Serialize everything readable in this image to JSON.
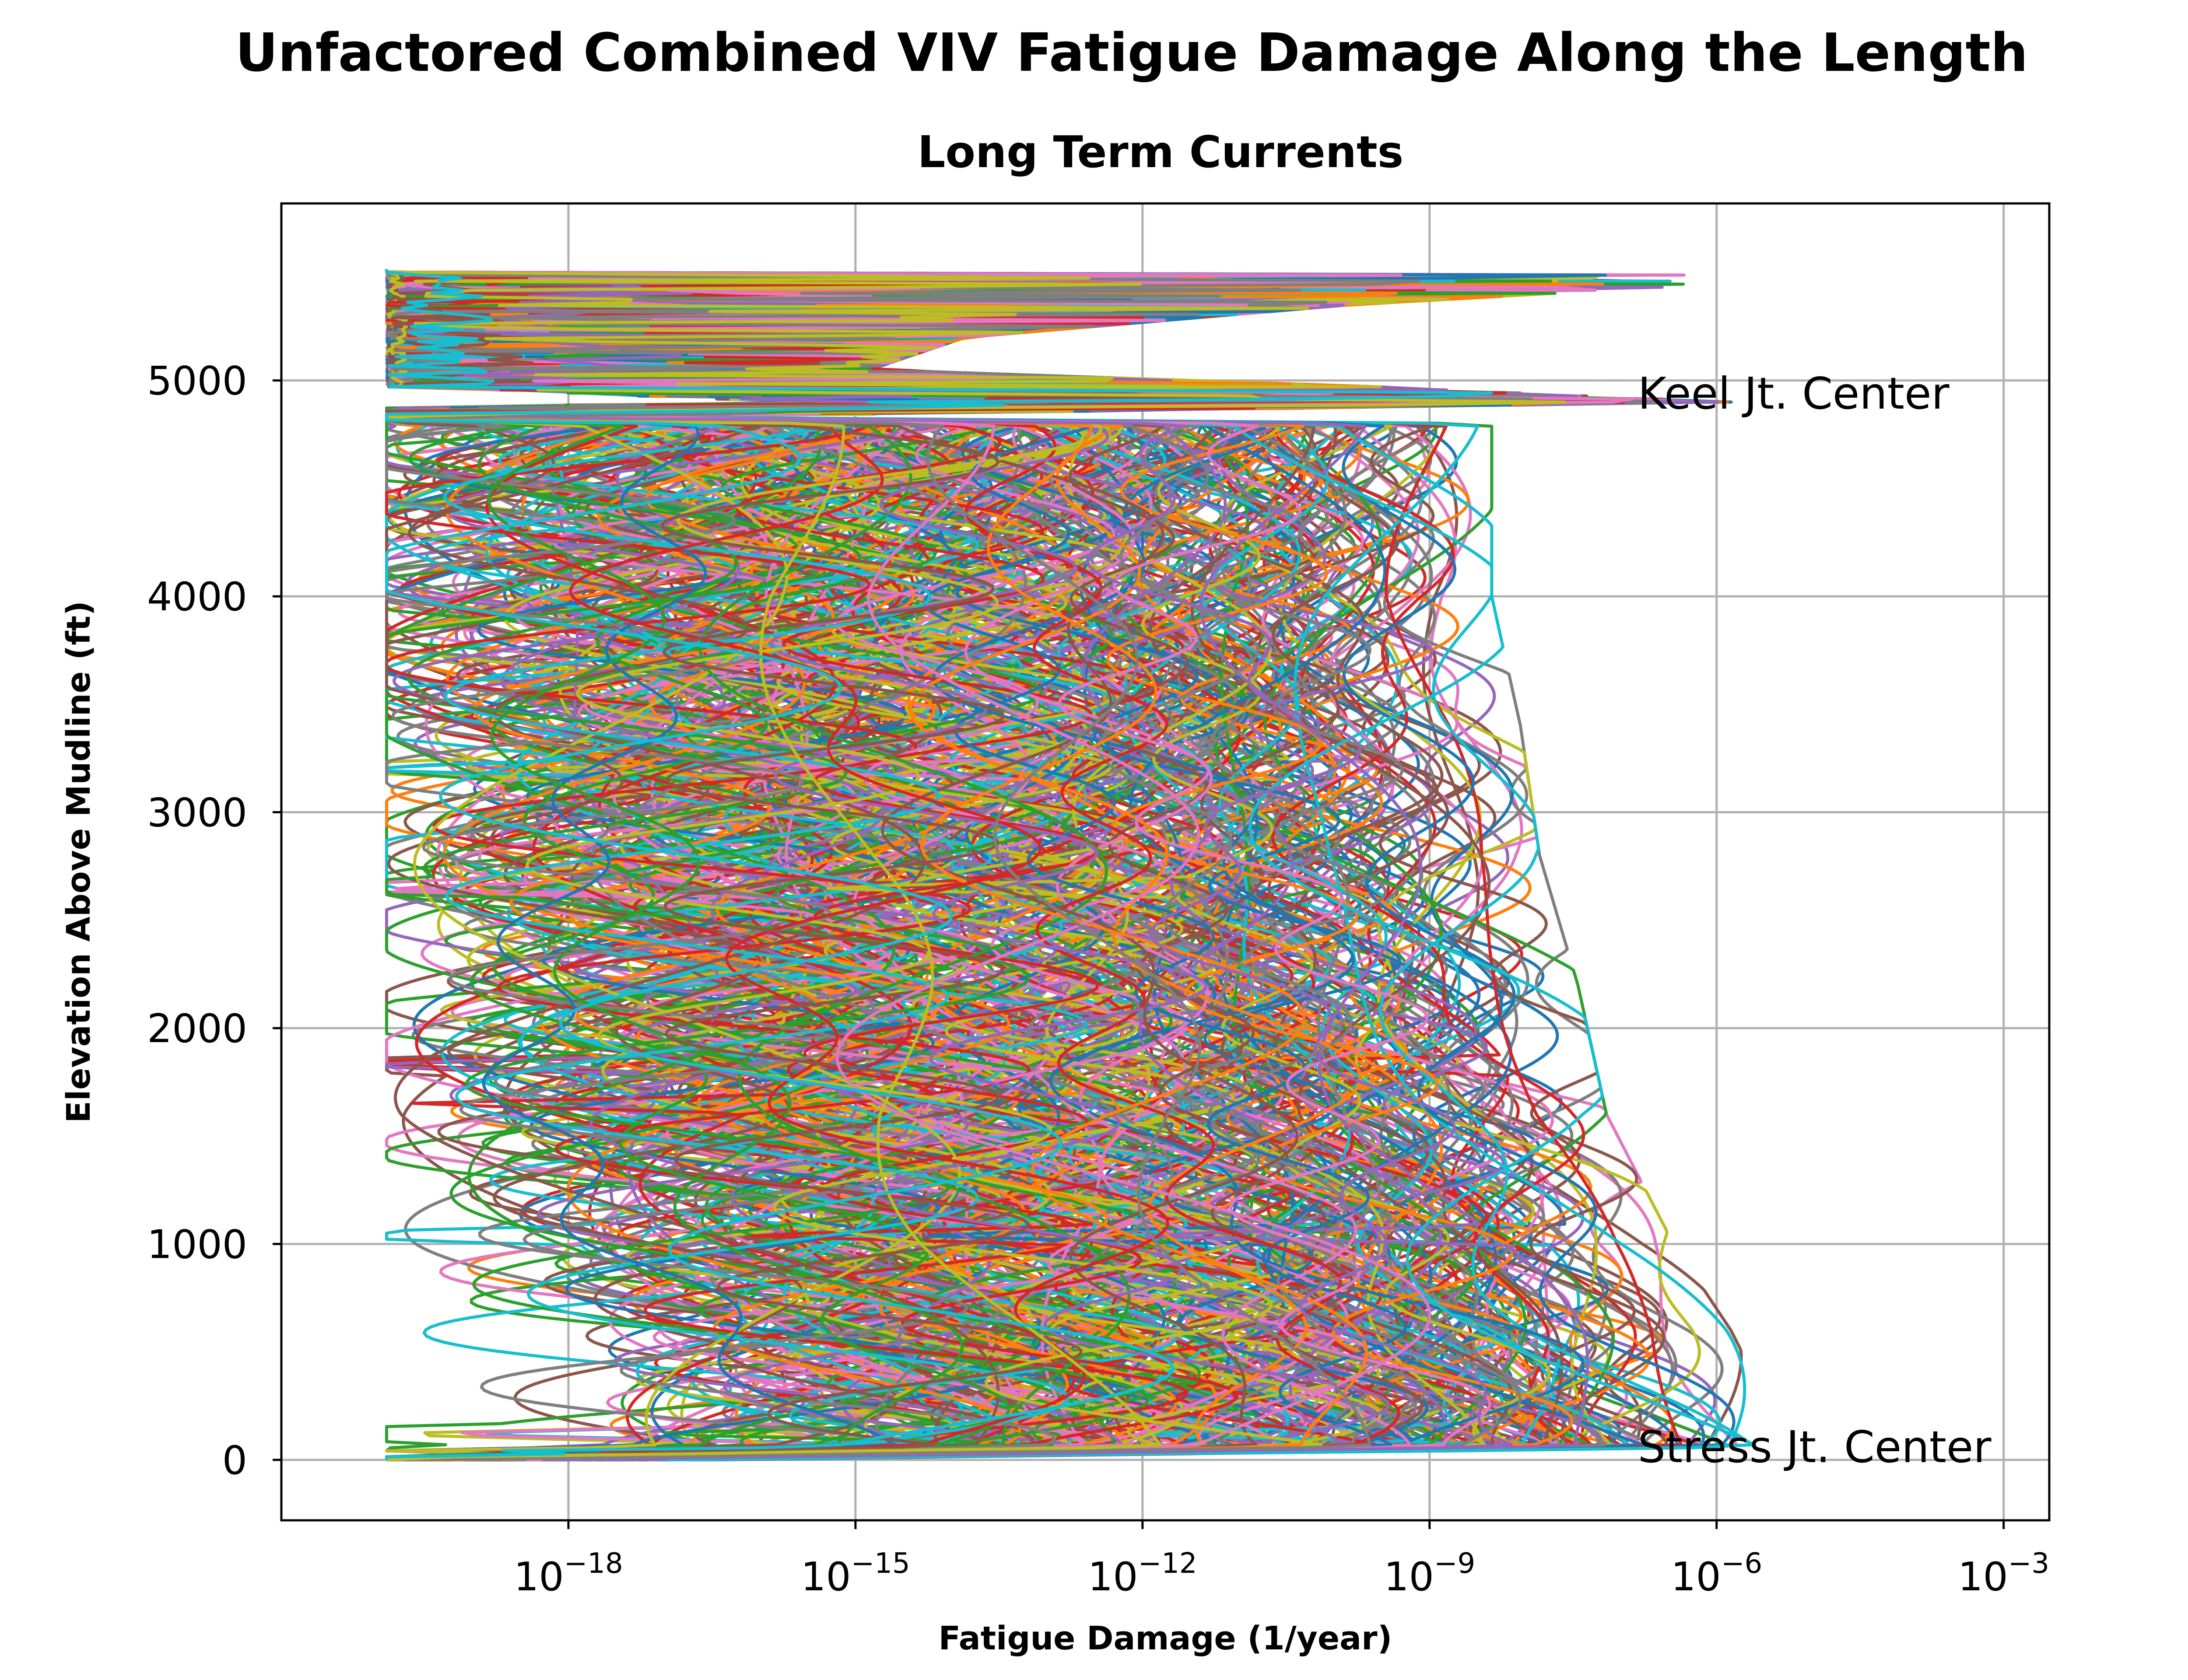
{
  "chart_data": {
    "type": "line",
    "title": "Unfactored Combined VIV Fatigue Damage Along the Length",
    "subtitle": "Long Term Currents",
    "xlabel": "Fatigue Damage (1/year)",
    "ylabel": "Elevation Above Mudline (ft)",
    "x_scale": "log",
    "xlim": [
      1e-21,
      0.003
    ],
    "ylim": [
      -280,
      5820
    ],
    "x_ticks": [
      {
        "value": 1e-18,
        "base": "10",
        "exp": "−18"
      },
      {
        "value": 1e-15,
        "base": "10",
        "exp": "−15"
      },
      {
        "value": 1e-12,
        "base": "10",
        "exp": "−12"
      },
      {
        "value": 1e-09,
        "base": "10",
        "exp": "−9"
      },
      {
        "value": 1e-06,
        "base": "10",
        "exp": "−6"
      },
      {
        "value": 0.001,
        "base": "10",
        "exp": "−3"
      }
    ],
    "y_ticks": [
      {
        "value": 0,
        "label": "0"
      },
      {
        "value": 1000,
        "label": "1000"
      },
      {
        "value": 2000,
        "label": "2000"
      },
      {
        "value": 3000,
        "label": "3000"
      },
      {
        "value": 4000,
        "label": "4000"
      },
      {
        "value": 5000,
        "label": "5000"
      }
    ],
    "grid": true,
    "legend": "none",
    "annotations": [
      {
        "text": "Keel Jt. Center",
        "x": 1.5e-07,
        "y": 4940
      },
      {
        "text": "Stress Jt. Center",
        "x": 1.5e-07,
        "y": 60
      }
    ],
    "palette": [
      "#1f77b4",
      "#ff7f0e",
      "#2ca02c",
      "#d62728",
      "#9467bd",
      "#8c564b",
      "#e377c2",
      "#7f7f7f",
      "#bcbd22",
      "#17becf"
    ],
    "series_count": 420,
    "series_model": {
      "anchor_points_ft": [
        0,
        60,
        250,
        600,
        1000,
        1600,
        2200,
        2800,
        3400,
        4000,
        4500,
        4800,
        4830,
        4900,
        4960,
        5050,
        5200,
        5350,
        5450,
        5510,
        5520
      ],
      "envelope_log10_damage": [
        -16,
        -5.4,
        -5.6,
        -6.0,
        -6.6,
        -7.3,
        -7.6,
        -8.0,
        -8.2,
        -8.5,
        -8.5,
        -8.5,
        -17,
        -5.8,
        -9,
        -15,
        -14,
        -10,
        -6,
        -3.1,
        -19.8
      ],
      "minimum_log10_damage": -19.9
    }
  }
}
